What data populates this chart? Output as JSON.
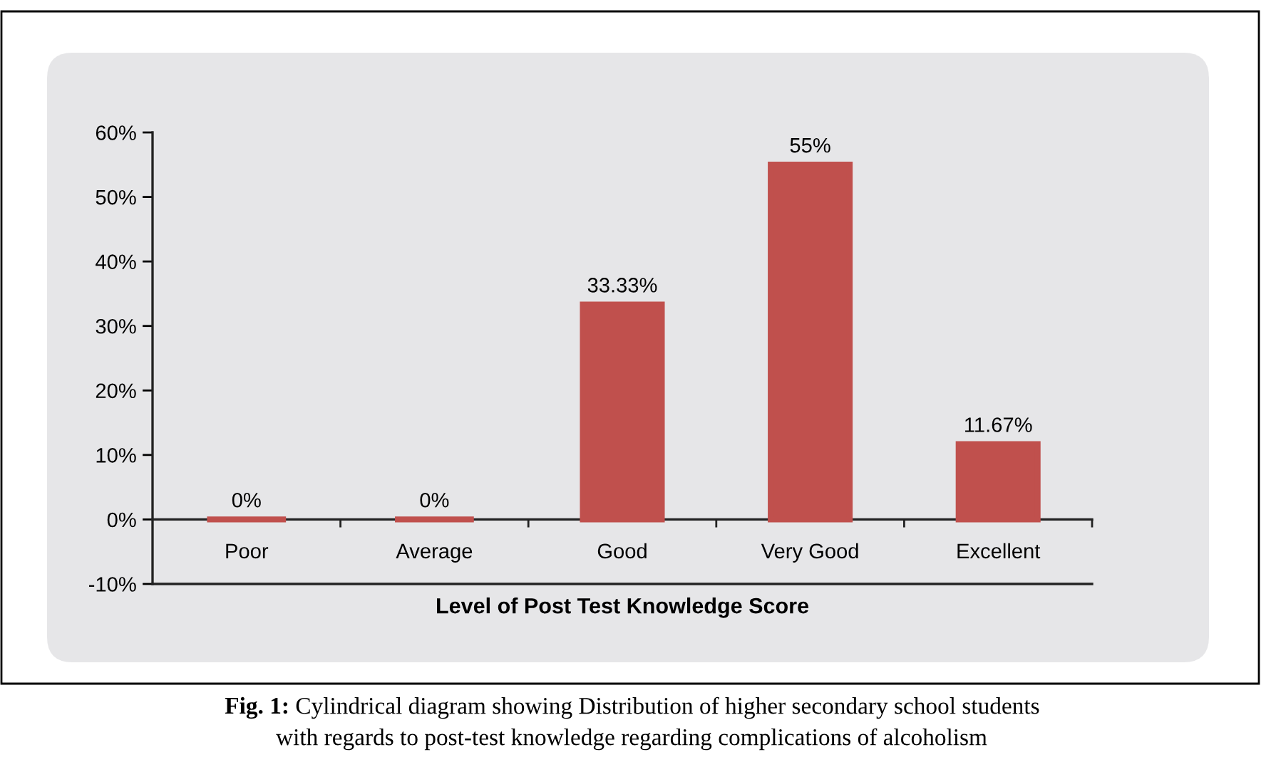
{
  "chart_data": {
    "type": "bar",
    "categories": [
      "Poor",
      "Average",
      "Good",
      "Very Good",
      "Excellent"
    ],
    "values": [
      0,
      0,
      33.33,
      55,
      11.67
    ],
    "color": "#c0504d",
    "value_labels": [
      "0%",
      "0%",
      "33.33%",
      "55%",
      "11.67%"
    ],
    "xlabel": "Level of Post Test Knowledge Score",
    "ylim": [
      -10,
      60
    ],
    "yticks": [
      {
        "value": -10,
        "label": "-10%"
      },
      {
        "value": 0,
        "label": "0%"
      },
      {
        "value": 10,
        "label": "10%"
      },
      {
        "value": 20,
        "label": "20%"
      },
      {
        "value": 30,
        "label": "30%"
      },
      {
        "value": 40,
        "label": "40%"
      },
      {
        "value": 50,
        "label": "50%"
      },
      {
        "value": 60,
        "label": "60%"
      }
    ],
    "annotations": [
      "Fig. 1: Cylindrical diagram showing Distribution of higher secondary school students\nwith regards to post-test knowledge regarding complications of alcoholism"
    ]
  }
}
